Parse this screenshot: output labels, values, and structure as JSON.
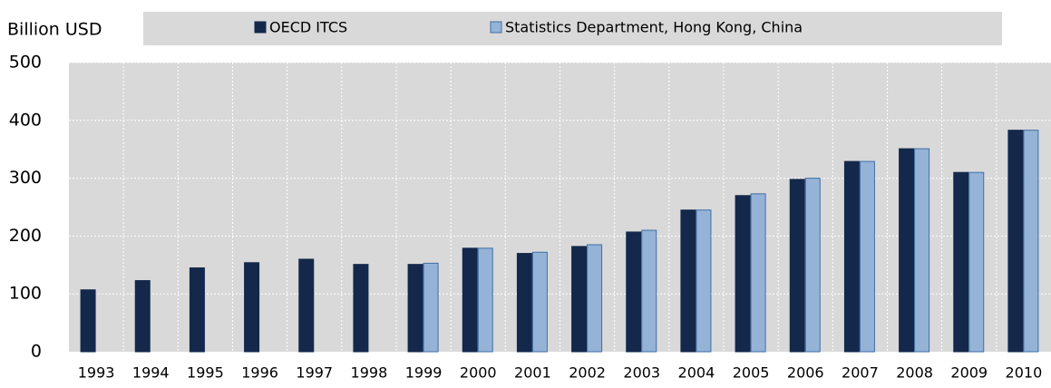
{
  "chart_data": {
    "type": "bar",
    "y_label": "Billion USD",
    "categories": [
      "1993",
      "1994",
      "1995",
      "1996",
      "1997",
      "1998",
      "1999",
      "2000",
      "2001",
      "2002",
      "2003",
      "2004",
      "2005",
      "2006",
      "2007",
      "2008",
      "2009",
      "2010"
    ],
    "series": [
      {
        "name": "OECD ITCS",
        "color": "#14284b",
        "values": [
          107,
          123,
          145,
          154,
          160,
          151,
          151,
          179,
          170,
          182,
          207,
          245,
          270,
          298,
          329,
          351,
          310,
          383
        ]
      },
      {
        "name": "Statistics Department, Hong Kong, China",
        "color": "#95b3d7",
        "values": [
          null,
          null,
          null,
          null,
          null,
          null,
          153,
          179,
          172,
          185,
          210,
          245,
          273,
          300,
          329,
          351,
          310,
          383
        ]
      }
    ],
    "ylim": [
      0,
      500
    ],
    "yticks": [
      0,
      100,
      200,
      300,
      400,
      500
    ],
    "grid": true,
    "legend": "top"
  }
}
